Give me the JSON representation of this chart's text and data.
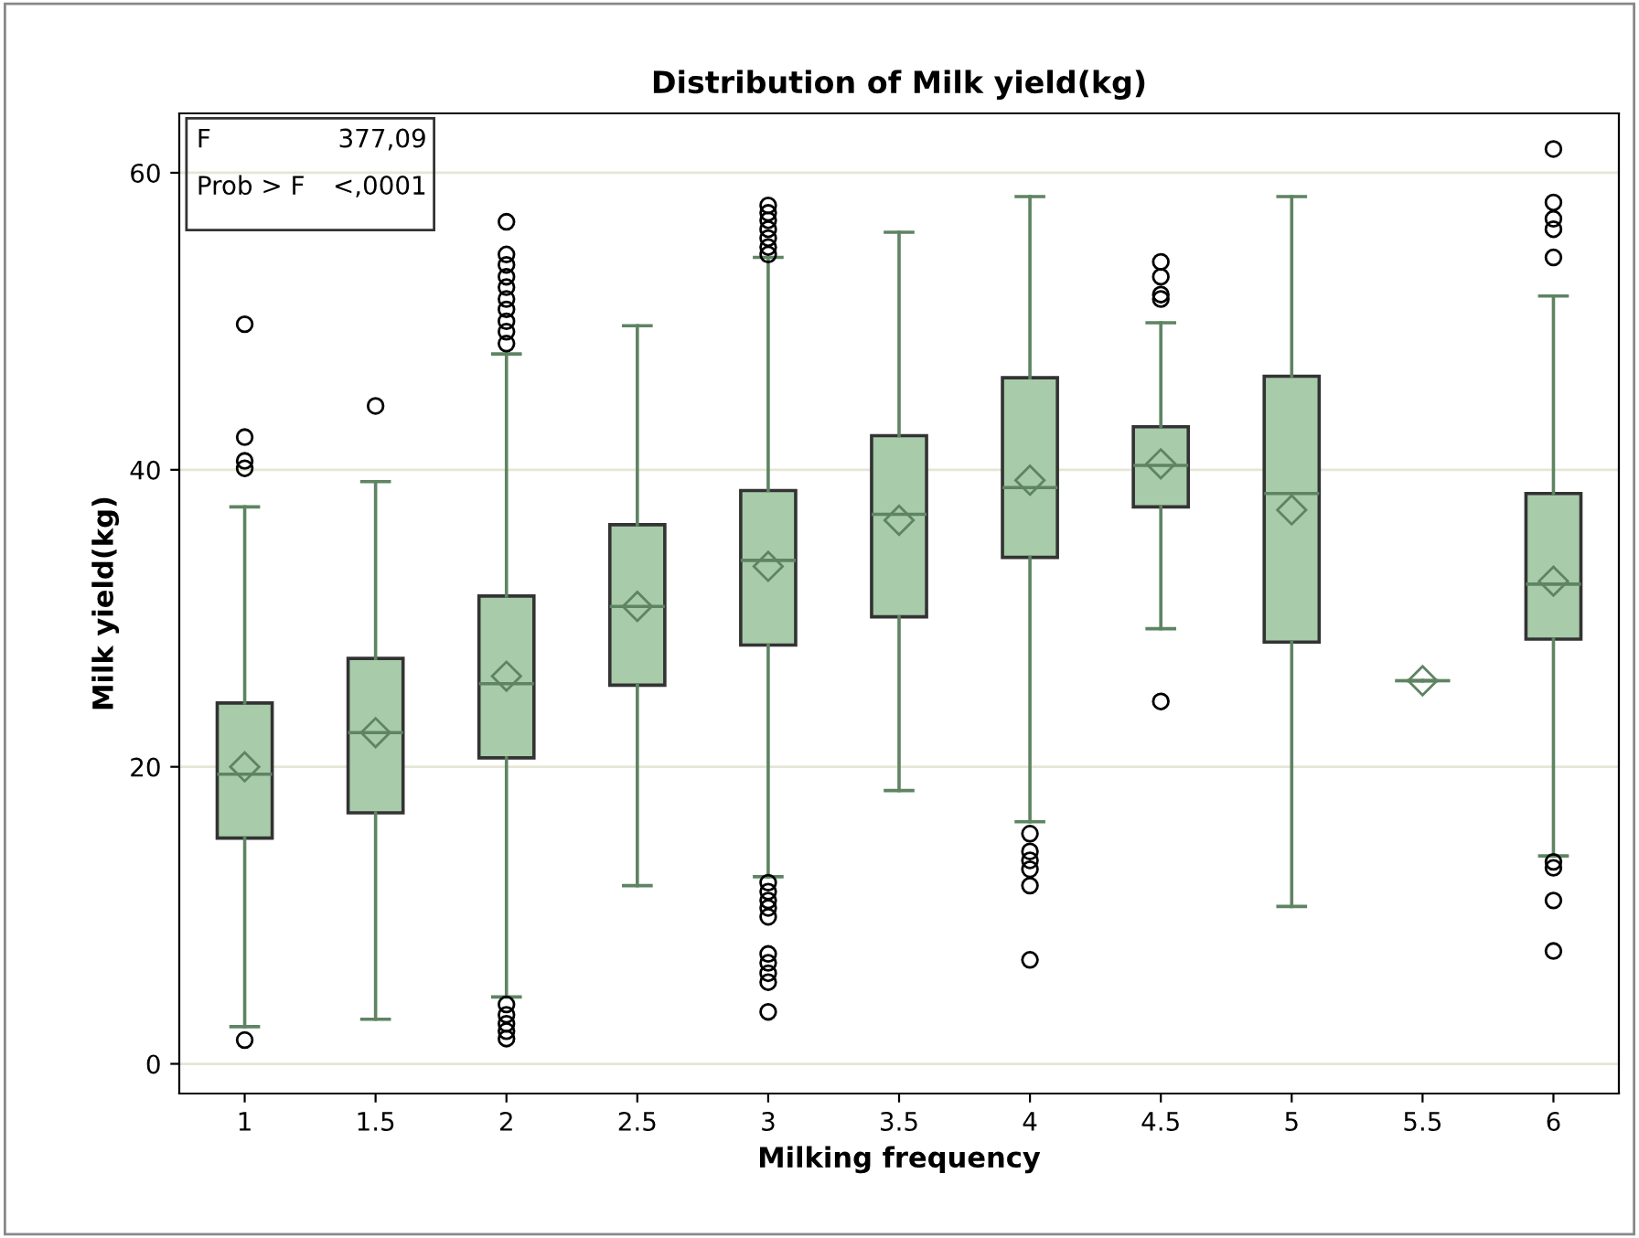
{
  "chart_data": {
    "type": "box",
    "title": "Distribution of Milk yield(kg)",
    "xlabel": "Milking frequency",
    "ylabel": "Milk yield(kg)",
    "categories": [
      "1",
      "1.5",
      "2",
      "2.5",
      "3",
      "3.5",
      "4",
      "4.5",
      "5",
      "5.5",
      "6"
    ],
    "color": "#a8cbaa",
    "boxes": [
      {
        "low": 2.5,
        "q1": 15.2,
        "median": 19.5,
        "q3": 24.3,
        "high": 37.5,
        "mean": 20.0,
        "outliers": [
          49.8,
          42.2,
          40.6,
          40.1,
          1.6
        ]
      },
      {
        "low": 3.0,
        "q1": 16.9,
        "median": 22.3,
        "q3": 27.3,
        "high": 39.2,
        "mean": 22.3,
        "outliers": [
          44.3
        ]
      },
      {
        "low": 4.5,
        "q1": 20.6,
        "median": 25.6,
        "q3": 31.5,
        "high": 47.8,
        "mean": 26.1,
        "outliers": [
          56.7,
          54.5,
          53.8,
          53.0,
          52.3,
          51.5,
          50.8,
          50.0,
          49.3,
          48.5,
          4.0,
          3.3,
          2.7,
          2.2,
          1.7
        ]
      },
      {
        "low": 12.0,
        "q1": 25.5,
        "median": 30.8,
        "q3": 36.3,
        "high": 49.7,
        "mean": 30.8
      },
      {
        "low": 12.6,
        "q1": 28.2,
        "median": 33.9,
        "q3": 38.6,
        "high": 54.3,
        "mean": 33.5,
        "outliers": [
          57.8,
          57.3,
          56.8,
          56.2,
          55.6,
          55.0,
          54.5,
          12.2,
          11.6,
          11.0,
          10.5,
          9.9,
          7.4,
          6.8,
          6.1,
          5.5,
          3.5
        ]
      },
      {
        "low": 18.4,
        "q1": 30.1,
        "median": 37.0,
        "q3": 42.3,
        "high": 56.0,
        "mean": 36.6
      },
      {
        "low": 16.3,
        "q1": 34.1,
        "median": 38.8,
        "q3": 46.2,
        "high": 58.4,
        "mean": 39.3,
        "outliers": [
          15.5,
          14.3,
          13.7,
          13.1,
          12.0,
          7.0
        ]
      },
      {
        "low": 29.3,
        "q1": 37.5,
        "median": 40.3,
        "q3": 42.9,
        "high": 49.9,
        "mean": 40.4,
        "outliers": [
          54.0,
          53.0,
          51.8,
          51.5,
          24.4
        ]
      },
      {
        "low": 10.6,
        "q1": 28.4,
        "median": 38.4,
        "q3": 46.3,
        "high": 58.4,
        "mean": 37.3
      },
      {
        "low": 25.8,
        "q1": 25.8,
        "median": 25.8,
        "q3": 25.8,
        "high": 25.8,
        "mean": 25.8
      },
      {
        "low": 14.0,
        "q1": 28.6,
        "median": 32.3,
        "q3": 38.4,
        "high": 51.7,
        "mean": 32.5,
        "outliers": [
          61.6,
          58.0,
          56.9,
          56.2,
          54.3,
          13.6,
          13.2,
          11.0,
          7.6
        ]
      }
    ],
    "ylim": [
      -2,
      64
    ],
    "yticks": [
      0,
      20,
      40,
      60
    ],
    "grid": "y",
    "annotations": [
      "F",
      "377,09",
      "Prob > F",
      "<,0001"
    ]
  }
}
